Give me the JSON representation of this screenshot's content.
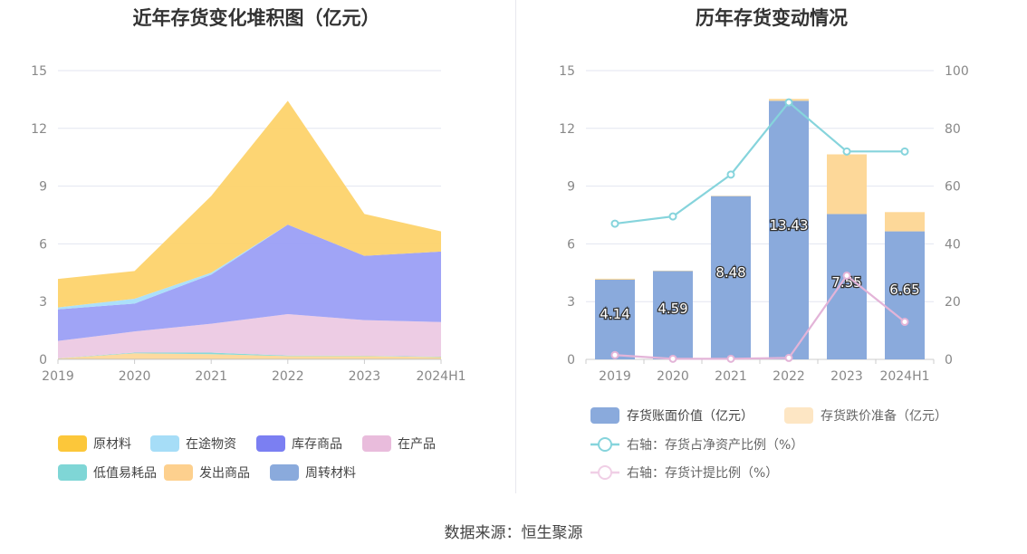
{
  "source": "数据来源：恒生聚源",
  "chart_data": [
    {
      "type": "area",
      "stacked": true,
      "title": "近年存货变化堆积图（亿元）",
      "categories": [
        "2019",
        "2020",
        "2021",
        "2022",
        "2023",
        "2024H1"
      ],
      "ylim": [
        0,
        15
      ],
      "yticks": [
        0,
        3,
        6,
        9,
        12,
        15
      ],
      "grid": true,
      "legend_position": "bottom",
      "series": [
        {
          "name": "周转材料",
          "color": "#8eaadb",
          "values": [
            0.02,
            0.02,
            0.02,
            0.02,
            0.02,
            0.02
          ]
        },
        {
          "name": "发出商品",
          "color": "#fdd899",
          "values": [
            0.03,
            0.3,
            0.25,
            0.15,
            0.15,
            0.1
          ]
        },
        {
          "name": "低值易耗品",
          "color": "#80d8d8",
          "values": [
            0.01,
            0.03,
            0.08,
            0.03,
            0.02,
            0.02
          ]
        },
        {
          "name": "在产品",
          "color": "#ecc9e3",
          "values": [
            0.9,
            1.1,
            1.5,
            2.15,
            1.85,
            1.8
          ]
        },
        {
          "name": "库存商品",
          "color": "#9b9ff5",
          "values": [
            1.64,
            1.45,
            2.55,
            4.65,
            3.34,
            3.66
          ]
        },
        {
          "name": "在途物资",
          "color": "#a8defa",
          "values": [
            0.1,
            0.25,
            0.1,
            0.0,
            0.0,
            0.0
          ]
        },
        {
          "name": "原材料",
          "color": "#fdd36b",
          "values": [
            1.48,
            1.44,
            3.99,
            6.43,
            2.17,
            1.05
          ]
        }
      ],
      "legend_order": [
        "原材料",
        "在途物资",
        "库存商品",
        "在产品",
        "低值易耗品",
        "发出商品",
        "周转材料"
      ],
      "legend_colors": {
        "原材料": "#fcc73a",
        "在途物资": "#a6ddf7",
        "库存商品": "#7b7ff2",
        "在产品": "#e9bcdc",
        "低值易耗品": "#7fd6d6",
        "发出商品": "#fdd08e",
        "周转材料": "#8aaadc"
      }
    },
    {
      "type": "bar",
      "stacked": true,
      "title": "历年存货变动情况",
      "categories": [
        "2019",
        "2020",
        "2021",
        "2022",
        "2023",
        "2024H1"
      ],
      "ylim": [
        0,
        15
      ],
      "yticks": [
        0,
        3,
        6,
        9,
        12,
        15
      ],
      "y2lim": [
        0,
        100
      ],
      "y2ticks": [
        0,
        20,
        40,
        60,
        80,
        100
      ],
      "grid": true,
      "legend_position": "bottom",
      "series": [
        {
          "name": "存货账面价值（亿元）",
          "color": "#8aaadc",
          "values": [
            4.14,
            4.59,
            8.48,
            13.43,
            7.55,
            6.65
          ],
          "labels": [
            "4.14",
            "4.59",
            "8.48",
            "13.43",
            "7.55",
            "6.65"
          ]
        },
        {
          "name": "存货跌价准备（亿元）",
          "color": "#fdd899",
          "values": [
            0.05,
            0.02,
            0.02,
            0.1,
            3.1,
            1.0
          ]
        }
      ],
      "lines": [
        {
          "name": "右轴：存货占净资产比例（%）",
          "color": "#86d4dc",
          "axis": "right",
          "values": [
            47,
            49.5,
            64,
            89,
            72,
            72
          ]
        },
        {
          "name": "右轴：存货计提比例（%）",
          "color": "#e3b4d8",
          "axis": "right",
          "values": [
            1.5,
            0.2,
            0.2,
            0.5,
            29,
            13
          ]
        }
      ]
    }
  ]
}
